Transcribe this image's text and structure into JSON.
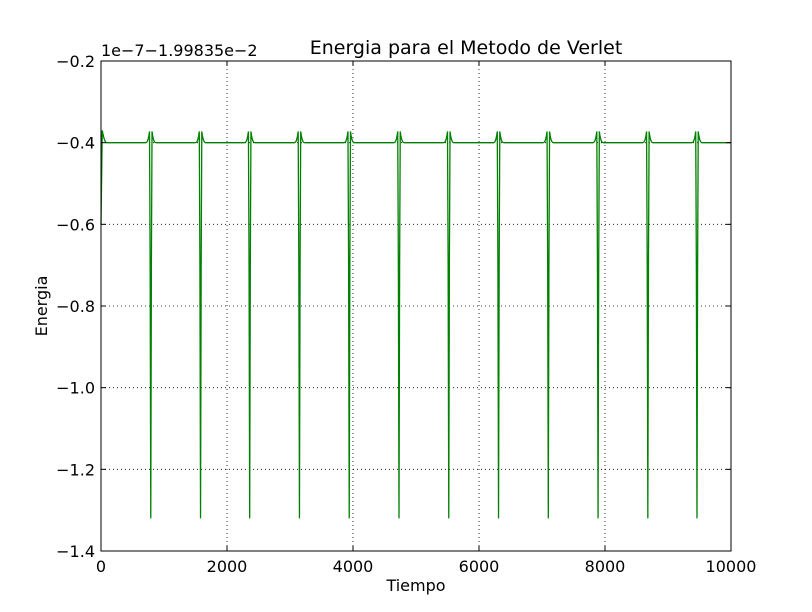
{
  "chart_data": {
    "type": "line",
    "title": "Energia para el Metodo de Verlet",
    "xlabel": "Tiempo",
    "ylabel": "Energia",
    "offset_text": "1e−7−1.99835e−2",
    "xlim": [
      0,
      10000
    ],
    "ylim": [
      -1.4,
      -0.2
    ],
    "x_ticks": [
      0,
      2000,
      4000,
      6000,
      8000,
      10000
    ],
    "x_tick_labels": [
      "0",
      "2000",
      "4000",
      "6000",
      "8000",
      "10000"
    ],
    "y_ticks": [
      -1.4,
      -1.2,
      -1.0,
      -0.8,
      -0.6,
      -0.4,
      -0.2
    ],
    "y_tick_labels": [
      "−1.4",
      "−1.2",
      "−1.0",
      "−0.8",
      "−0.6",
      "−0.4",
      "−0.2"
    ],
    "grid": true,
    "series": [
      {
        "color": "#008000",
        "baseline": -0.4,
        "overshoot": -0.37,
        "dip_min": -1.32,
        "dips_x": [
          50,
          790,
          1580,
          2360,
          3150,
          3940,
          4730,
          5520,
          6310,
          7100,
          7890,
          8680,
          9460
        ],
        "start_value": -0.6
      }
    ]
  }
}
